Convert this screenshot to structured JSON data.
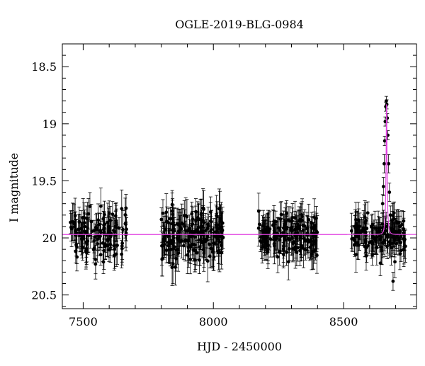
{
  "chart_data": {
    "type": "scatter",
    "title": "OGLE-2019-BLG-0984",
    "xlabel": "HJD - 2450000",
    "ylabel": "I magnitude",
    "xlim": [
      7420,
      8780
    ],
    "ylim": [
      20.62,
      18.3
    ],
    "y_inverted": true,
    "xticks": [
      7500,
      8000,
      8500
    ],
    "yticks": [
      18.5,
      19,
      19.5,
      20,
      20.5
    ],
    "ytick_labels": [
      "18.5",
      "19",
      "19.5",
      "20",
      "20.5"
    ],
    "baseline_mag": 19.97,
    "colors": {
      "points": "#000000",
      "model": "#e040e0",
      "axes": "#000000"
    },
    "series": [
      {
        "type": "points_with_errorbars",
        "groups": [
          {
            "season": 1,
            "x_range": [
              7450,
              7670
            ],
            "mag_center": 19.97,
            "scatter": 0.17,
            "error": 0.13,
            "count": 130
          },
          {
            "season": 2,
            "x_range": [
              7800,
              8040
            ],
            "mag_center": 19.97,
            "scatter": 0.18,
            "error": 0.14,
            "count": 190
          },
          {
            "season": 3,
            "x_range": [
              8170,
              8400
            ],
            "mag_center": 19.97,
            "scatter": 0.16,
            "error": 0.13,
            "count": 170
          },
          {
            "season": 4,
            "x_range": [
              8530,
              8740
            ],
            "mag_center": 19.97,
            "scatter": 0.15,
            "error": 0.12,
            "count": 140
          }
        ],
        "event_points": [
          {
            "x": 8650,
            "mag": 19.7
          },
          {
            "x": 8653,
            "mag": 19.55
          },
          {
            "x": 8656,
            "mag": 19.35
          },
          {
            "x": 8658,
            "mag": 19.15
          },
          {
            "x": 8660,
            "mag": 18.98
          },
          {
            "x": 8662,
            "mag": 18.85
          },
          {
            "x": 8664,
            "mag": 18.8
          },
          {
            "x": 8666,
            "mag": 18.83
          },
          {
            "x": 8668,
            "mag": 18.95
          },
          {
            "x": 8670,
            "mag": 19.1
          },
          {
            "x": 8673,
            "mag": 19.35
          },
          {
            "x": 8676,
            "mag": 19.6
          },
          {
            "x": 8680,
            "mag": 19.8
          },
          {
            "x": 8685,
            "mag": 19.92
          },
          {
            "x": 8690,
            "mag": 20.38
          },
          {
            "x": 8695,
            "mag": 19.95
          }
        ]
      },
      {
        "type": "model_curve",
        "peak_x": 8665,
        "peak_mag": 18.83,
        "tE": 7.0,
        "u0": 0.15
      }
    ]
  }
}
